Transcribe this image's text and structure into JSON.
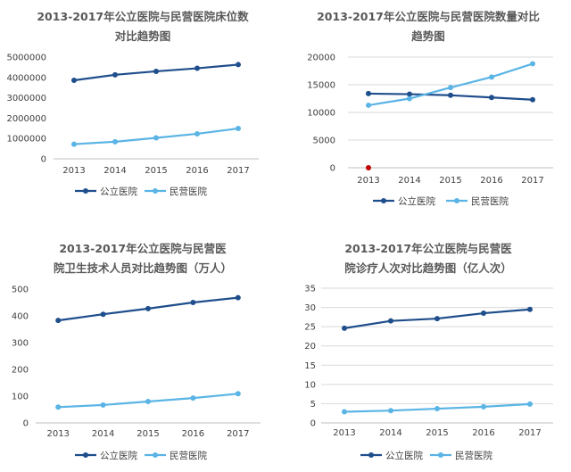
{
  "colors": {
    "public": "#1f4e8c",
    "private": "#5ab4e5",
    "grid": "#d9d9d9",
    "axis": "#bfbfbf"
  },
  "chart_data": [
    {
      "type": "line",
      "title_line1": "2013-2017年公立医院与民营医院床位数",
      "title_line2": "对比趋势图",
      "categories": [
        "2013",
        "2014",
        "2015",
        "2016",
        "2017"
      ],
      "series": [
        {
          "name": "公立医院",
          "values": [
            3860000,
            4130000,
            4300000,
            4450000,
            4630000
          ]
        },
        {
          "name": "民营医院",
          "values": [
            720000,
            840000,
            1030000,
            1230000,
            1490000
          ]
        }
      ],
      "ylim": [
        0,
        5000000
      ],
      "yticks": [
        "0",
        "1000000",
        "2000000",
        "3000000",
        "4000000",
        "5000000"
      ],
      "ytick_values": [
        0,
        1000000,
        2000000,
        3000000,
        4000000,
        5000000
      ],
      "grid": false,
      "legend": "bottom"
    },
    {
      "type": "line",
      "title_line1": "2013-2017年公立医院与民营医院数量对比",
      "title_line2": "趋势图",
      "categories": [
        "2013",
        "2014",
        "2015",
        "2016",
        "2017"
      ],
      "series": [
        {
          "name": "公立医院",
          "values": [
            13400,
            13300,
            13100,
            12700,
            12300
          ]
        },
        {
          "name": "民营医院",
          "values": [
            11300,
            12500,
            14500,
            16400,
            18800
          ]
        }
      ],
      "ylim": [
        0,
        20000
      ],
      "yticks": [
        "0",
        "5000",
        "10000",
        "15000",
        "20000"
      ],
      "ytick_values": [
        0,
        5000,
        10000,
        15000,
        20000
      ],
      "grid": true,
      "legend": "bottom",
      "marker_color": "#c00000"
    },
    {
      "type": "line",
      "title_line1": "2013-2017年公立医院与民营医",
      "title_line2": "院卫生技术人员对比趋势图（万人）",
      "categories": [
        "2013",
        "2014",
        "2015",
        "2016",
        "2017"
      ],
      "series": [
        {
          "name": "公立医院",
          "values": [
            383,
            406,
            427,
            450,
            468
          ]
        },
        {
          "name": "民营医院",
          "values": [
            59,
            67,
            80,
            93,
            109
          ]
        }
      ],
      "ylim": [
        0,
        500
      ],
      "yticks": [
        "0",
        "100",
        "200",
        "300",
        "400",
        "500"
      ],
      "ytick_values": [
        0,
        100,
        200,
        300,
        400,
        500
      ],
      "grid": false,
      "legend": "bottom"
    },
    {
      "type": "line",
      "title_line1": "2013-2017年公立医院与民营医",
      "title_line2": "院诊疗人次对比趋势图（亿人次）",
      "categories": [
        "2013",
        "2014",
        "2015",
        "2016",
        "2017"
      ],
      "series": [
        {
          "name": "公立医院",
          "values": [
            24.6,
            26.5,
            27.1,
            28.5,
            29.5
          ]
        },
        {
          "name": "民营医院",
          "values": [
            2.9,
            3.2,
            3.7,
            4.2,
            4.9
          ]
        }
      ],
      "ylim": [
        0,
        35
      ],
      "yticks": [
        "0",
        "5",
        "10",
        "15",
        "20",
        "25",
        "30",
        "35"
      ],
      "ytick_values": [
        0,
        5,
        10,
        15,
        20,
        25,
        30,
        35
      ],
      "grid": true,
      "legend": "bottom"
    }
  ]
}
